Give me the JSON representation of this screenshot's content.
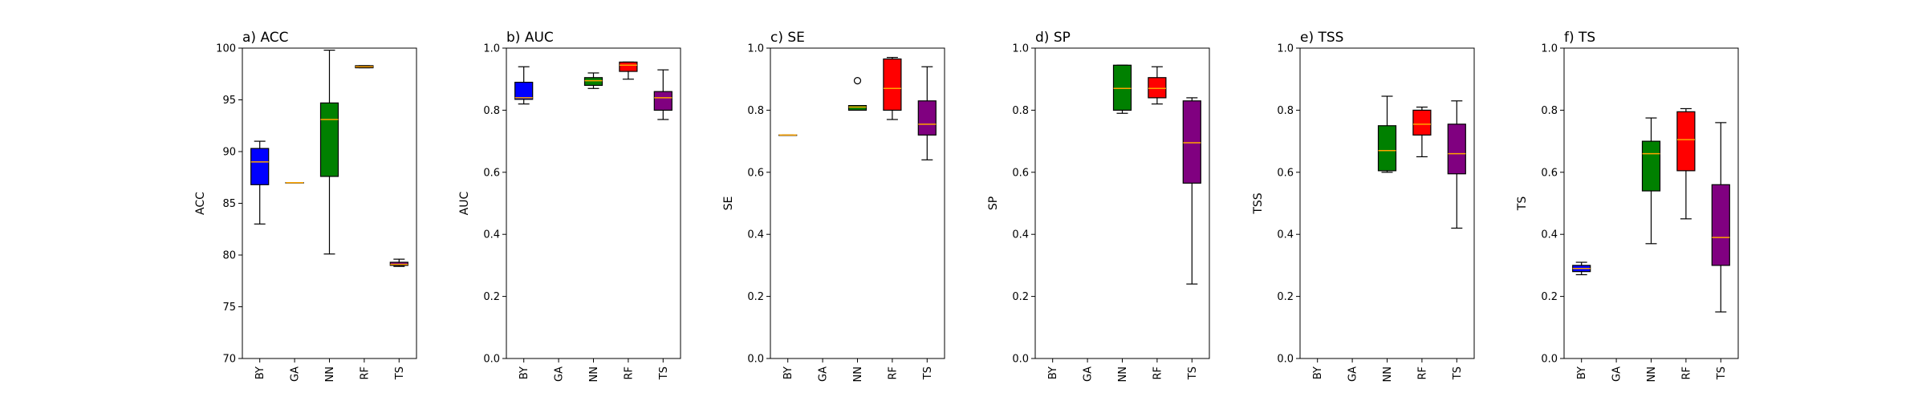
{
  "chart_data": [
    {
      "type": "box",
      "title": "a) ACC",
      "ylabel": "ACC",
      "ylim": [
        70,
        100
      ],
      "yticks": [
        "70",
        "75",
        "80",
        "85",
        "90",
        "95",
        "100"
      ],
      "categories": [
        "BY",
        "GA",
        "NN",
        "RF",
        "TS"
      ],
      "boxes": [
        {
          "category": "BY",
          "whislo": 83.0,
          "q1": 86.8,
          "med": 89.0,
          "q3": 90.3,
          "whishi": 91.0,
          "color": "#0000ff"
        },
        {
          "category": "GA",
          "whislo": 87.0,
          "q1": 87.0,
          "med": 87.0,
          "q3": 87.0,
          "whishi": 87.0,
          "color": "#0000ff"
        },
        {
          "category": "NN",
          "whislo": 80.1,
          "q1": 87.6,
          "med": 93.1,
          "q3": 94.7,
          "whishi": 99.8,
          "color": "#008000"
        },
        {
          "category": "RF",
          "whislo": 98.1,
          "q1": 98.1,
          "med": 98.2,
          "q3": 98.3,
          "whishi": 98.3,
          "color": "#ff0000"
        },
        {
          "category": "TS",
          "whislo": 78.9,
          "q1": 79.0,
          "med": 79.1,
          "q3": 79.3,
          "whishi": 79.6,
          "color": "#800080"
        }
      ]
    },
    {
      "type": "box",
      "title": "b) AUC",
      "ylabel": "AUC",
      "ylim": [
        0,
        1
      ],
      "yticks": [
        "0.0",
        "0.2",
        "0.4",
        "0.6",
        "0.8",
        "1.0"
      ],
      "categories": [
        "BY",
        "GA",
        "NN",
        "RF",
        "TS"
      ],
      "boxes": [
        {
          "category": "BY",
          "whislo": 0.82,
          "q1": 0.835,
          "med": 0.84,
          "q3": 0.89,
          "whishi": 0.94,
          "color": "#0000ff"
        },
        {
          "category": "NN",
          "whislo": 0.87,
          "q1": 0.88,
          "med": 0.895,
          "q3": 0.905,
          "whishi": 0.92,
          "color": "#008000"
        },
        {
          "category": "RF",
          "whislo": 0.9,
          "q1": 0.925,
          "med": 0.945,
          "q3": 0.955,
          "whishi": 0.955,
          "color": "#ff0000"
        },
        {
          "category": "TS",
          "whislo": 0.77,
          "q1": 0.8,
          "med": 0.84,
          "q3": 0.86,
          "whishi": 0.93,
          "color": "#800080"
        }
      ]
    },
    {
      "type": "box",
      "title": "c) SE",
      "ylabel": "SE",
      "ylim": [
        0,
        1
      ],
      "yticks": [
        "0.0",
        "0.2",
        "0.4",
        "0.6",
        "0.8",
        "1.0"
      ],
      "categories": [
        "BY",
        "GA",
        "NN",
        "RF",
        "TS"
      ],
      "boxes": [
        {
          "category": "BY",
          "whislo": 0.72,
          "q1": 0.72,
          "med": 0.72,
          "q3": 0.72,
          "whishi": 0.72,
          "color": "#0000ff"
        },
        {
          "category": "NN",
          "whislo": 0.8,
          "q1": 0.8,
          "med": 0.81,
          "q3": 0.815,
          "whishi": 0.815,
          "color": "#008000",
          "fliers": [
            0.895
          ]
        },
        {
          "category": "RF",
          "whislo": 0.77,
          "q1": 0.8,
          "med": 0.87,
          "q3": 0.965,
          "whishi": 0.97,
          "color": "#ff0000"
        },
        {
          "category": "TS",
          "whislo": 0.64,
          "q1": 0.72,
          "med": 0.755,
          "q3": 0.83,
          "whishi": 0.94,
          "color": "#800080"
        }
      ]
    },
    {
      "type": "box",
      "title": "d) SP",
      "ylabel": "SP",
      "ylim": [
        0,
        1
      ],
      "yticks": [
        "0.0",
        "0.2",
        "0.4",
        "0.6",
        "0.8",
        "1.0"
      ],
      "categories": [
        "BY",
        "GA",
        "NN",
        "RF",
        "TS"
      ],
      "boxes": [
        {
          "category": "NN",
          "whislo": 0.79,
          "q1": 0.8,
          "med": 0.87,
          "q3": 0.945,
          "whishi": 0.945,
          "color": "#008000"
        },
        {
          "category": "RF",
          "whislo": 0.82,
          "q1": 0.84,
          "med": 0.87,
          "q3": 0.905,
          "whishi": 0.94,
          "color": "#ff0000"
        },
        {
          "category": "TS",
          "whislo": 0.24,
          "q1": 0.565,
          "med": 0.695,
          "q3": 0.83,
          "whishi": 0.84,
          "color": "#800080"
        }
      ]
    },
    {
      "type": "box",
      "title": "e) TSS",
      "ylabel": "TSS",
      "ylim": [
        0,
        1
      ],
      "yticks": [
        "0.0",
        "0.2",
        "0.4",
        "0.6",
        "0.8",
        "1.0"
      ],
      "categories": [
        "BY",
        "GA",
        "NN",
        "RF",
        "TS"
      ],
      "boxes": [
        {
          "category": "NN",
          "whislo": 0.6,
          "q1": 0.605,
          "med": 0.67,
          "q3": 0.75,
          "whishi": 0.845,
          "color": "#008000"
        },
        {
          "category": "RF",
          "whislo": 0.65,
          "q1": 0.72,
          "med": 0.755,
          "q3": 0.8,
          "whishi": 0.81,
          "color": "#ff0000"
        },
        {
          "category": "TS",
          "whislo": 0.42,
          "q1": 0.595,
          "med": 0.66,
          "q3": 0.755,
          "whishi": 0.83,
          "color": "#800080"
        }
      ]
    },
    {
      "type": "box",
      "title": "f) TS",
      "ylabel": "TS",
      "ylim": [
        0,
        1
      ],
      "yticks": [
        "0.0",
        "0.2",
        "0.4",
        "0.6",
        "0.8",
        "1.0"
      ],
      "categories": [
        "BY",
        "GA",
        "NN",
        "RF",
        "TS"
      ],
      "boxes": [
        {
          "category": "BY",
          "whislo": 0.27,
          "q1": 0.28,
          "med": 0.29,
          "q3": 0.3,
          "whishi": 0.31,
          "color": "#0000ff"
        },
        {
          "category": "NN",
          "whislo": 0.37,
          "q1": 0.54,
          "med": 0.66,
          "q3": 0.7,
          "whishi": 0.775,
          "color": "#008000"
        },
        {
          "category": "RF",
          "whislo": 0.45,
          "q1": 0.605,
          "med": 0.705,
          "q3": 0.795,
          "whishi": 0.805,
          "color": "#ff0000"
        },
        {
          "category": "TS",
          "whislo": 0.15,
          "q1": 0.3,
          "med": 0.39,
          "q3": 0.56,
          "whishi": 0.76,
          "color": "#800080"
        }
      ]
    }
  ],
  "median_color": "#ffa500"
}
